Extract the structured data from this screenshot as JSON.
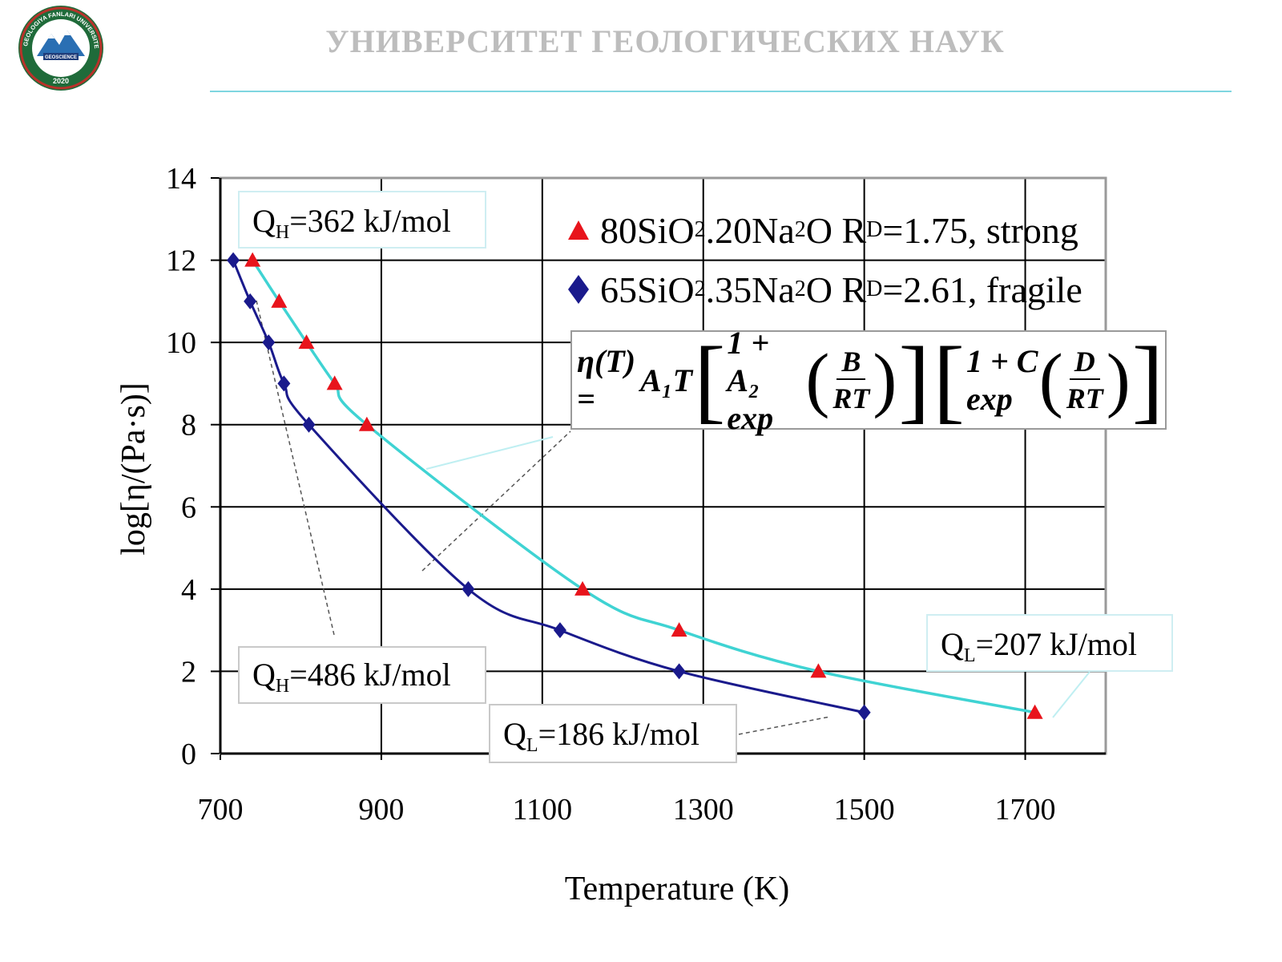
{
  "header": {
    "title": "УНИВЕРСИТЕТ ГЕОЛОГИЧЕСКИХ НАУК",
    "logo": {
      "ring_text": "GEOLOGIYA FANLARI UNIVERSITETI",
      "center_text": "GEOSCIENCE",
      "year": "2020"
    }
  },
  "formula": {
    "lhs": "η(T) =",
    "a1t": "A₁T",
    "term1_prefix": "1 + A₂ exp",
    "b": "B",
    "rt1": "RT",
    "term2_prefix": "1 + C exp",
    "d": "D",
    "rt2": "RT"
  },
  "annotations": {
    "qh_strong": {
      "q": "Q",
      "sub": "H",
      "value": "=362 kJ/mol"
    },
    "qh_fragile": {
      "q": "Q",
      "sub": "H",
      "value": "=486 kJ/mol"
    },
    "ql_fragile": {
      "q": "Q",
      "sub": "L",
      "value": "=186 kJ/mol"
    },
    "ql_strong": {
      "q": "Q",
      "sub": "L",
      "value": "=207 kJ/mol"
    }
  },
  "legend": {
    "strong": {
      "p1": "80SiO",
      "s1": "2",
      "p2": ".20Na",
      "s2": "2",
      "p3": "O R",
      "s3": "D",
      "p4": "=1.75, strong"
    },
    "fragile": {
      "p1": "65SiO",
      "s1": "2",
      "p2": ".35Na",
      "s2": "2",
      "p3": "O R",
      "s3": "D",
      "p4": "=2.61, fragile"
    }
  },
  "colors": {
    "strong_line": "#3fd3d3",
    "strong_marker": "#e8141c",
    "fragile_line": "#1a1a8c",
    "fragile_marker": "#1a1a8c",
    "grid": "#000000"
  },
  "chart_data": {
    "type": "line",
    "title": "",
    "xlabel": "Temperature (K)",
    "ylabel": "log[η/(Pa·s)]",
    "xlim": [
      700,
      1800
    ],
    "ylim": [
      0,
      14
    ],
    "xticks": [
      "700",
      "900",
      "1100",
      "1300",
      "1500",
      "1700"
    ],
    "yticks": [
      "0",
      "2",
      "4",
      "6",
      "8",
      "10",
      "12",
      "14"
    ],
    "grid": true,
    "legend_position": "top-right",
    "series": [
      {
        "name": "80SiO2.20Na2O RD=1.75, strong",
        "marker": "triangle",
        "x": [
          740,
          773,
          807,
          842,
          882,
          1150,
          1270,
          1443,
          1712
        ],
        "y": [
          12,
          11,
          10,
          9,
          8,
          4,
          3,
          2,
          1
        ]
      },
      {
        "name": "65SiO2.35Na2O RD=2.61, fragile",
        "marker": "diamond",
        "x": [
          716,
          737,
          760,
          779,
          810,
          1008,
          1122,
          1270,
          1500
        ],
        "y": [
          12,
          11,
          10,
          9,
          8,
          4,
          3,
          2,
          1
        ]
      }
    ]
  }
}
